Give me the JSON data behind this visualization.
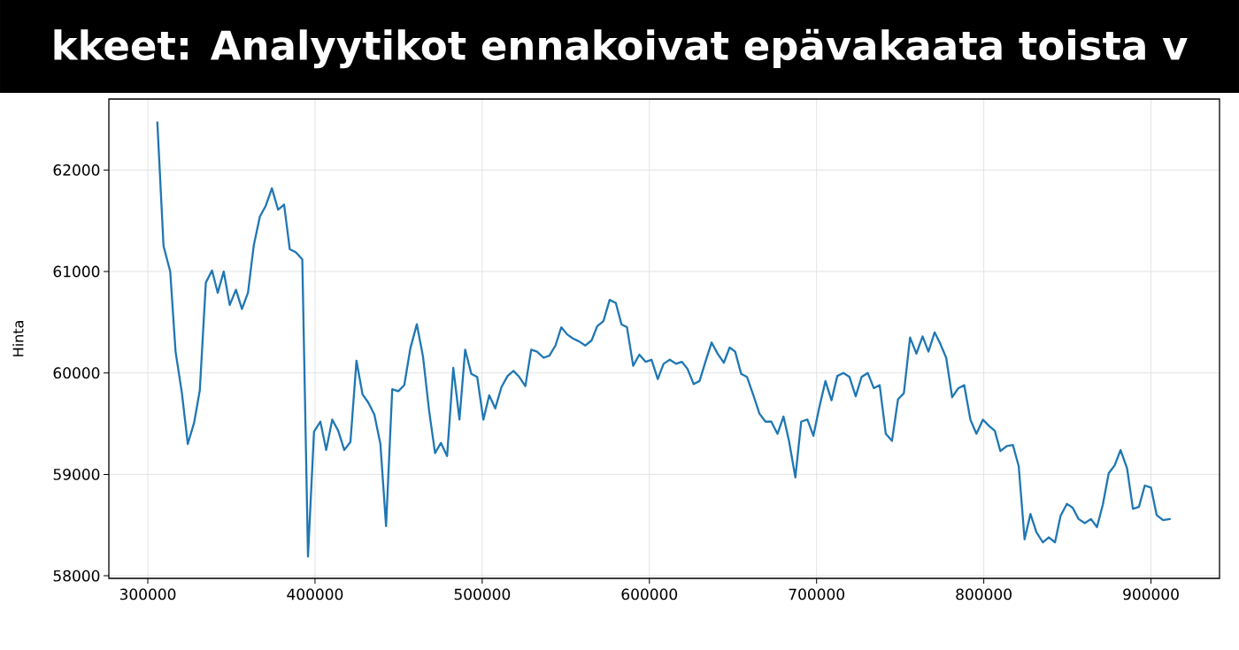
{
  "chart_data": {
    "type": "line",
    "title": "kkeet: Analyytikot ennakoivat epävakaata toista v",
    "ylabel": "Hinta",
    "color": "#1f77b4",
    "x": [
      305700,
      309400,
      313400,
      316600,
      320400,
      323900,
      327700,
      331100,
      334700,
      338400,
      341800,
      345400,
      349000,
      352700,
      356300,
      359900,
      363400,
      367000,
      370600,
      374200,
      377900,
      381500,
      384900,
      388500,
      392400,
      395800,
      399400,
      403200,
      406700,
      410300,
      413900,
      417500,
      421200,
      424800,
      428400,
      431800,
      435500,
      439100,
      442500,
      446200,
      449800,
      453400,
      457000,
      460900,
      464600,
      468300,
      471800,
      475300,
      479000,
      482700,
      486400,
      489800,
      493500,
      497000,
      500700,
      504200,
      507800,
      511500,
      515200,
      518700,
      522200,
      525800,
      529300,
      532800,
      536700,
      540200,
      543800,
      547300,
      550800,
      554300,
      558000,
      561700,
      565400,
      568800,
      572500,
      576200,
      579900,
      583300,
      586600,
      590300,
      594000,
      597700,
      601300,
      605000,
      608500,
      612200,
      615900,
      619400,
      622800,
      626500,
      630000,
      633500,
      637200,
      640800,
      644500,
      648000,
      651300,
      654900,
      658400,
      662000,
      665800,
      669400,
      672900,
      676600,
      680200,
      683500,
      687300,
      690800,
      694500,
      698100,
      701600,
      705300,
      708900,
      712400,
      716100,
      719700,
      723400,
      726900,
      730600,
      734200,
      737700,
      741400,
      745100,
      748700,
      752200,
      755900,
      759700,
      763400,
      766900,
      770600,
      774200,
      777500,
      781100,
      784800,
      788300,
      792000,
      795600,
      799500,
      803000,
      806600,
      809900,
      813800,
      817400,
      820900,
      824400,
      827900,
      831500,
      835300,
      838900,
      842600,
      845900,
      849700,
      853200,
      856700,
      860400,
      864100,
      867700,
      871200,
      874700,
      878300,
      881800,
      885700,
      889200,
      892800,
      896300,
      900000,
      903400,
      907200,
      911300
    ],
    "values": [
      62470,
      61250,
      61000,
      60210,
      59800,
      59300,
      59510,
      59830,
      60890,
      61010,
      60790,
      61000,
      60670,
      60820,
      60630,
      60790,
      61260,
      61540,
      61650,
      61820,
      61610,
      61660,
      61220,
      61190,
      61120,
      58190,
      59420,
      59520,
      59240,
      59540,
      59430,
      59240,
      59320,
      60120,
      59790,
      59710,
      59590,
      59300,
      58490,
      59840,
      59820,
      59880,
      60240,
      60480,
      60160,
      59620,
      59210,
      59310,
      59180,
      60050,
      59540,
      60230,
      59990,
      59960,
      59540,
      59780,
      59650,
      59860,
      59970,
      60020,
      59960,
      59870,
      60230,
      60210,
      60150,
      60170,
      60270,
      60450,
      60380,
      60340,
      60310,
      60270,
      60320,
      60460,
      60510,
      60720,
      60690,
      60480,
      60450,
      60070,
      60180,
      60110,
      60130,
      59940,
      60090,
      60130,
      60090,
      60110,
      60040,
      59890,
      59920,
      60110,
      60300,
      60190,
      60100,
      60250,
      60210,
      59990,
      59960,
      59790,
      59600,
      59520,
      59520,
      59400,
      59570,
      59330,
      58970,
      59520,
      59540,
      59380,
      59660,
      59920,
      59730,
      59970,
      60000,
      59960,
      59770,
      59960,
      60000,
      59850,
      59880,
      59400,
      59330,
      59740,
      59800,
      60350,
      60190,
      60360,
      60210,
      60400,
      60280,
      60150,
      59760,
      59850,
      59880,
      59540,
      59400,
      59540,
      59480,
      59430,
      59230,
      59280,
      59290,
      59080,
      58360,
      58610,
      58430,
      58330,
      58380,
      58330,
      58590,
      58710,
      58670,
      58560,
      58520,
      58560,
      58480,
      58700,
      59010,
      59090,
      59240,
      59060,
      58660,
      58680,
      58890,
      58870,
      58600,
      58550,
      58560
    ],
    "xlim": [
      276700,
      941000
    ],
    "ylim": [
      57975,
      62700
    ],
    "xticks": [
      300000,
      400000,
      500000,
      600000,
      700000,
      800000,
      900000
    ],
    "yticks": [
      58000,
      59000,
      60000,
      61000,
      62000
    ],
    "grid": true
  }
}
